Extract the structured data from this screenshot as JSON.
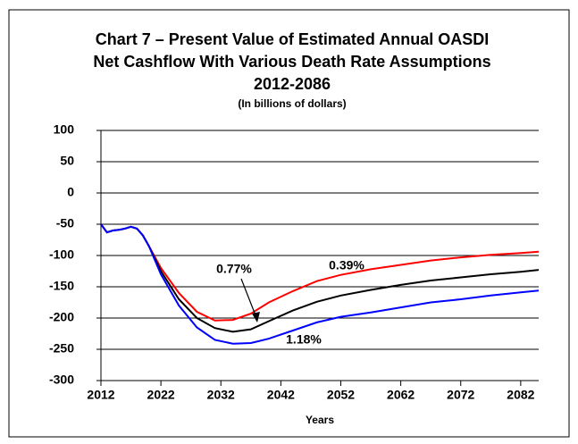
{
  "chart_data": {
    "type": "line",
    "title": "Chart 7 – Present Value of Estimated Annual OASDI",
    "title_line2": "Net Cashflow With Various Death Rate Assumptions",
    "subtitle": "2012-2086",
    "units": "(In billions of dollars)",
    "x_label": "Years",
    "x": [
      2012,
      2013,
      2014,
      2015,
      2016,
      2017,
      2018,
      2019,
      2020,
      2022,
      2025,
      2028,
      2031,
      2034,
      2037,
      2040,
      2044,
      2048,
      2052,
      2057,
      2062,
      2067,
      2072,
      2077,
      2082,
      2085
    ],
    "series": [
      {
        "name": "0.39%",
        "color": "#ff0000",
        "values": [
          -50,
          -63,
          -60,
          -59,
          -57,
          -54,
          -57,
          -68,
          -85,
          -120,
          -160,
          -190,
          -204,
          -203,
          -193,
          -175,
          -157,
          -141,
          -131,
          -122,
          -115,
          -108,
          -103,
          -99,
          -96,
          -94
        ]
      },
      {
        "name": "0.77%",
        "color": "#000000",
        "values": [
          -50,
          -63,
          -60,
          -59,
          -57,
          -54,
          -57,
          -68,
          -85,
          -125,
          -170,
          -200,
          -216,
          -222,
          -218,
          -205,
          -188,
          -174,
          -164,
          -155,
          -147,
          -140,
          -135,
          -130,
          -126,
          -123
        ]
      },
      {
        "name": "1.18%",
        "color": "#0000ff",
        "values": [
          -50,
          -63,
          -60,
          -59,
          -57,
          -54,
          -57,
          -68,
          -85,
          -130,
          -180,
          -215,
          -235,
          -241,
          -240,
          -233,
          -220,
          -207,
          -198,
          -191,
          -183,
          -175,
          -170,
          -164,
          -159,
          -156
        ]
      }
    ],
    "xlim": [
      2012,
      2085
    ],
    "xticks": [
      2012,
      2022,
      2032,
      2042,
      2052,
      2062,
      2072,
      2082
    ],
    "ylim": [
      -300,
      100
    ],
    "yticks": [
      -300,
      -250,
      -200,
      -150,
      -100,
      -50,
      0,
      50,
      100
    ],
    "grid": true
  }
}
